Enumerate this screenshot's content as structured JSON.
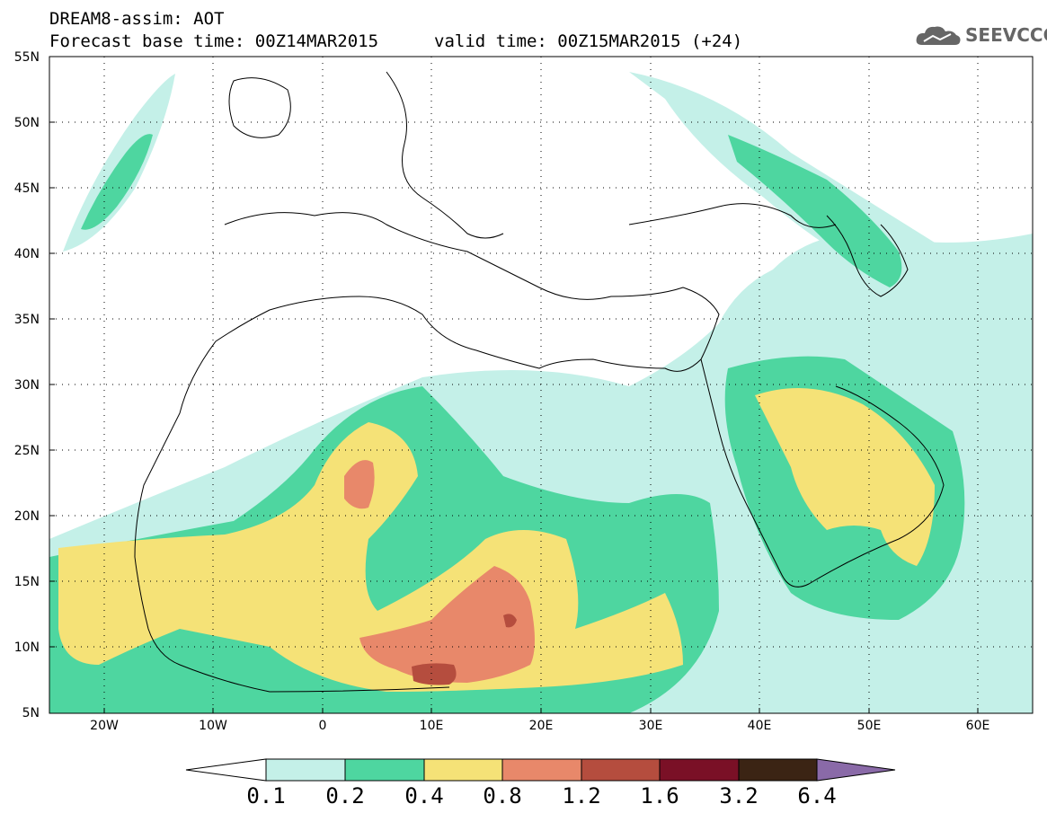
{
  "header": {
    "line1": "DREAM8-assim: AOT",
    "line2_left": "Forecast base time: 00Z14MAR2015",
    "line2_right": "valid time: 00Z15MAR2015 (+24)"
  },
  "logo": {
    "icon": "cloud-icon",
    "text": "SEEVCCC",
    "color": "#666666"
  },
  "axes": {
    "lat_labels": [
      "55N",
      "50N",
      "45N",
      "40N",
      "35N",
      "30N",
      "25N",
      "20N",
      "15N",
      "10N",
      "5N"
    ],
    "lon_labels": [
      "20W",
      "10W",
      "0",
      "10E",
      "20E",
      "30E",
      "40E",
      "50E",
      "60E"
    ],
    "lon_range": [
      -25,
      65
    ],
    "lat_range": [
      5,
      55
    ]
  },
  "colorbar": {
    "labels": [
      "0.1",
      "0.2",
      "0.4",
      "0.8",
      "1.2",
      "1.6",
      "3.2",
      "6.4"
    ],
    "colors": [
      "#c4f0e8",
      "#4ed6a0",
      "#f5e277",
      "#e8886a",
      "#b54d3e",
      "#7a1026",
      "#3b2414",
      "#8a6aa8"
    ]
  }
}
